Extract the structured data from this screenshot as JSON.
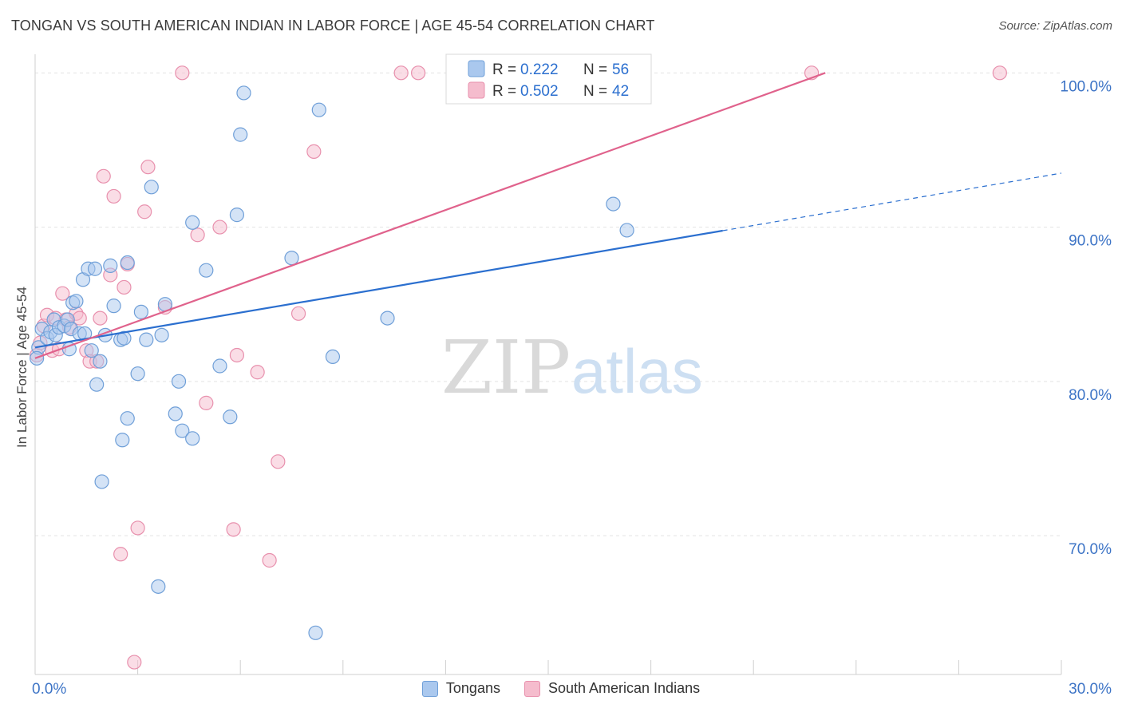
{
  "header": {
    "title": "TONGAN VS SOUTH AMERICAN INDIAN IN LABOR FORCE | AGE 45-54 CORRELATION CHART",
    "source": "Source: ZipAtlas.com"
  },
  "watermark": {
    "zip": "ZIP",
    "atlas": "atlas"
  },
  "colors": {
    "tongans_fill": "#aac8ee",
    "tongans_stroke": "#6f9fd8",
    "tongans_line": "#2b6fcf",
    "sai_fill": "#f5bccd",
    "sai_stroke": "#e890ad",
    "sai_line": "#e0628c",
    "r_value_text": "#2b6fcf",
    "axis_label": "#3d74c6"
  },
  "legend_top": {
    "rows": [
      {
        "r_label": "R =",
        "r_value": "0.222",
        "n_label": "N =",
        "n_value": "56"
      },
      {
        "r_label": "R =",
        "r_value": "0.502",
        "n_label": "N =",
        "n_value": "42"
      }
    ]
  },
  "chart_data": {
    "type": "scatter",
    "title": "TONGAN VS SOUTH AMERICAN INDIAN IN LABOR FORCE | AGE 45-54 CORRELATION CHART",
    "xlabel": "",
    "ylabel": "In Labor Force | Age 45-54",
    "xlim": [
      0,
      30
    ],
    "ylim": [
      61,
      101
    ],
    "x_tick_labels": [
      {
        "value": 0,
        "label": "0.0%"
      },
      {
        "value": 30,
        "label": "30.0%"
      }
    ],
    "y_tick_labels": [
      {
        "value": 70,
        "label": "70.0%"
      },
      {
        "value": 80,
        "label": "80.0%"
      },
      {
        "value": 90,
        "label": "90.0%"
      },
      {
        "value": 100,
        "label": "100.0%"
      }
    ],
    "grid": "horizontal dashed",
    "legend_placement": "bottom",
    "series": [
      {
        "name": "Tongans",
        "R": 0.222,
        "N": 56,
        "trend": {
          "x0": 0,
          "y0": 82.2,
          "x1": 30,
          "y1": 93.5,
          "solid_until_x": 20.1
        },
        "points": [
          [
            0.1,
            82.2
          ],
          [
            0.2,
            83.4
          ],
          [
            0.35,
            82.8
          ],
          [
            0.45,
            83.2
          ],
          [
            0.55,
            84.0
          ],
          [
            0.6,
            83.0
          ],
          [
            0.7,
            83.5
          ],
          [
            0.85,
            83.6
          ],
          [
            0.95,
            84.0
          ],
          [
            1.0,
            82.1
          ],
          [
            1.05,
            83.4
          ],
          [
            1.1,
            85.1
          ],
          [
            1.2,
            85.2
          ],
          [
            1.3,
            83.1
          ],
          [
            1.4,
            86.6
          ],
          [
            1.45,
            83.1
          ],
          [
            1.55,
            87.3
          ],
          [
            1.65,
            82.0
          ],
          [
            1.75,
            87.3
          ],
          [
            1.8,
            79.8
          ],
          [
            1.9,
            81.3
          ],
          [
            1.95,
            73.5
          ],
          [
            2.05,
            83.0
          ],
          [
            2.2,
            87.5
          ],
          [
            2.3,
            84.9
          ],
          [
            2.5,
            82.7
          ],
          [
            2.55,
            76.2
          ],
          [
            2.6,
            82.8
          ],
          [
            2.7,
            87.7
          ],
          [
            2.7,
            77.6
          ],
          [
            3.0,
            80.5
          ],
          [
            3.1,
            84.5
          ],
          [
            3.25,
            82.7
          ],
          [
            3.4,
            92.6
          ],
          [
            3.6,
            66.7
          ],
          [
            3.7,
            83.0
          ],
          [
            3.8,
            85.0
          ],
          [
            4.1,
            77.9
          ],
          [
            4.2,
            80.0
          ],
          [
            4.3,
            76.8
          ],
          [
            4.6,
            90.3
          ],
          [
            4.6,
            76.3
          ],
          [
            5.0,
            87.2
          ],
          [
            5.4,
            81.0
          ],
          [
            5.7,
            77.7
          ],
          [
            5.9,
            90.8
          ],
          [
            6.0,
            96.0
          ],
          [
            6.1,
            98.7
          ],
          [
            7.5,
            88.0
          ],
          [
            8.2,
            63.7
          ],
          [
            8.3,
            97.6
          ],
          [
            8.7,
            81.6
          ],
          [
            10.3,
            84.1
          ],
          [
            16.9,
            91.5
          ],
          [
            17.3,
            89.8
          ],
          [
            0.05,
            81.5
          ]
        ]
      },
      {
        "name": "South American Indians",
        "R": 0.502,
        "N": 42,
        "trend": {
          "x0": 0,
          "y0": 81.5,
          "x1": 23.1,
          "y1": 100.0
        },
        "points": [
          [
            0.05,
            81.7
          ],
          [
            0.15,
            82.5
          ],
          [
            0.25,
            83.6
          ],
          [
            0.35,
            84.3
          ],
          [
            0.5,
            82.0
          ],
          [
            0.6,
            84.1
          ],
          [
            0.7,
            82.1
          ],
          [
            0.8,
            85.7
          ],
          [
            0.9,
            84.0
          ],
          [
            1.0,
            83.5
          ],
          [
            1.2,
            84.4
          ],
          [
            1.3,
            84.1
          ],
          [
            1.5,
            82.0
          ],
          [
            1.6,
            81.3
          ],
          [
            1.8,
            81.3
          ],
          [
            1.9,
            84.1
          ],
          [
            2.0,
            93.3
          ],
          [
            2.2,
            86.9
          ],
          [
            2.3,
            92.0
          ],
          [
            2.5,
            68.8
          ],
          [
            2.6,
            86.1
          ],
          [
            2.7,
            87.6
          ],
          [
            2.9,
            61.8
          ],
          [
            3.0,
            70.5
          ],
          [
            3.2,
            91.0
          ],
          [
            3.3,
            93.9
          ],
          [
            3.8,
            84.8
          ],
          [
            4.3,
            100.0
          ],
          [
            4.75,
            89.5
          ],
          [
            5.0,
            78.6
          ],
          [
            5.4,
            90.0
          ],
          [
            5.8,
            70.4
          ],
          [
            5.9,
            81.7
          ],
          [
            6.5,
            80.6
          ],
          [
            6.85,
            68.4
          ],
          [
            7.1,
            74.8
          ],
          [
            7.7,
            84.4
          ],
          [
            8.15,
            94.9
          ],
          [
            10.7,
            100.0
          ],
          [
            11.2,
            100.0
          ],
          [
            22.7,
            100.0
          ],
          [
            28.2,
            100.0
          ]
        ]
      }
    ]
  }
}
